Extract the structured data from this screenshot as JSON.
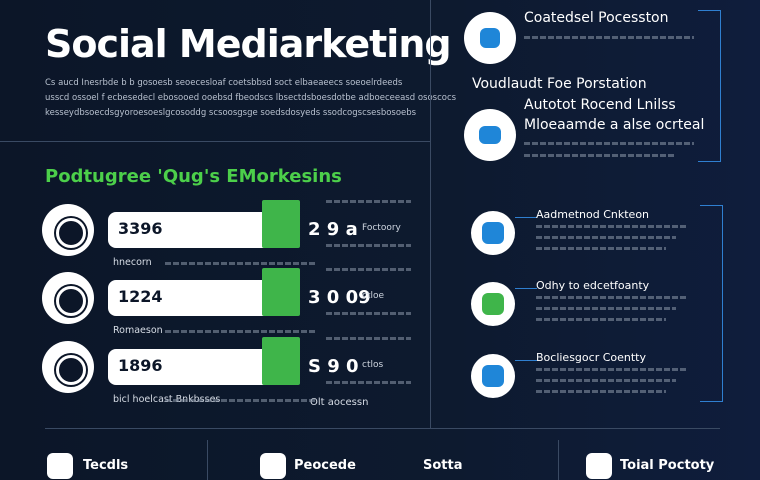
{
  "header": {
    "title": "Social Mediarketing",
    "paragraph": [
      "Cs aucd Inesrbde b b gosoesb seoecesloaf coetsbbsd soct elbaeaeecs soeoelrdeeds",
      "usscd ossoel f ecbesedecl ebosooed ooebsd fbeodscs lbsectdsboesdotbe adboeceeasd ososcocs",
      "kesseydbsoecdsgyoroesoeslgcosoddg scsoosgsge soedsdosyeds ssodcogscsesbosoebs"
    ]
  },
  "section": {
    "title": "Podtugree 'Qug's EMorkesins",
    "rows": [
      {
        "value": "3396",
        "stat": "2 9 a",
        "note": "Foctoory",
        "label": "hnecorn"
      },
      {
        "value": "1224",
        "stat": "3 0 09",
        "note": "ctloe",
        "label": "Romaeson"
      },
      {
        "value": "1896",
        "stat": "S 9 0",
        "note": "ctlos",
        "label": "bicl hoelcast Bnkbsses"
      }
    ],
    "footnote": "Olt aocessn"
  },
  "right": {
    "heading1": "Coatedsel Pocesston",
    "heading2": "Voudlaudt Foe Porstation",
    "heading3": "Autotot Rocend Lnilss",
    "heading4": "Mloeaamde a alse ocrteal",
    "items": [
      {
        "title": "Aadmetnod Cnkteon"
      },
      {
        "title": "Odhy to edcetfoanty"
      },
      {
        "title": "Bocliesgocr Coentty"
      }
    ]
  },
  "footer": {
    "items": [
      "Tecdls",
      "Peocede",
      "Sotta",
      "Toial Poctoty"
    ]
  }
}
